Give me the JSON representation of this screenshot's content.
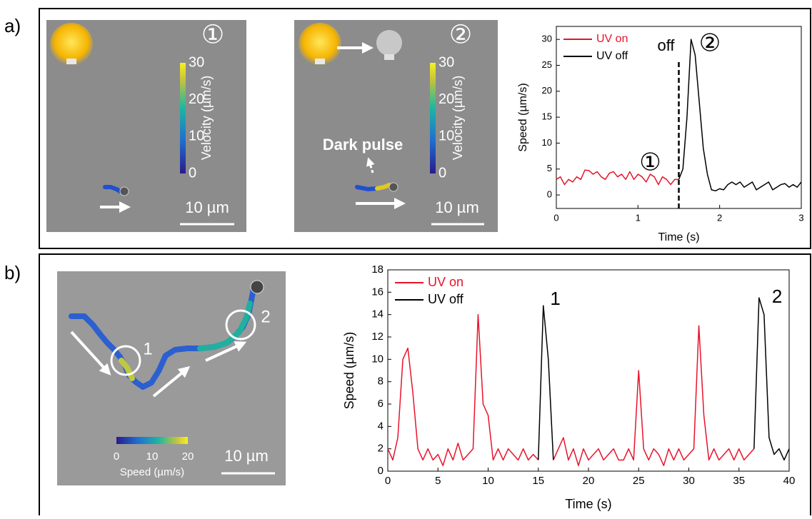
{
  "panel_labels": [
    "a)",
    "b)"
  ],
  "images": [
    {
      "number": "①",
      "colorbar": {
        "label": "Velocity (µm/s)",
        "ticks": [
          0,
          10,
          20,
          30
        ]
      },
      "scale_bar": "10 µm"
    },
    {
      "number": "②",
      "colorbar": {
        "label": "Velocity (µm/s)",
        "ticks": [
          0,
          10,
          20,
          30
        ]
      },
      "annotation": "Dark pulse",
      "scale_bar": "10 µm"
    },
    {
      "markers": [
        "1",
        "2"
      ],
      "colorbar": {
        "label": "Speed (µm/s)",
        "ticks": [
          0,
          10,
          20
        ]
      },
      "scale_bar": "10 µm"
    }
  ],
  "chart_data": [
    {
      "type": "line",
      "xlabel": "Time (s)",
      "ylabel": "Speed (µm/s)",
      "xlim": [
        0,
        3
      ],
      "ylim": [
        -2.6,
        32.5
      ],
      "xticks": [
        0,
        1,
        2,
        3
      ],
      "yticks": [
        0,
        5,
        10,
        15,
        20,
        25,
        30
      ],
      "legend": "upper-left",
      "vline": {
        "x": 1.5,
        "label": "off"
      },
      "annotations": [
        "①",
        "②"
      ],
      "x": [
        0,
        0.05,
        0.1,
        0.15,
        0.2,
        0.25,
        0.3,
        0.35,
        0.4,
        0.45,
        0.5,
        0.55,
        0.6,
        0.65,
        0.7,
        0.75,
        0.8,
        0.85,
        0.9,
        0.95,
        1,
        1.05,
        1.1,
        1.15,
        1.2,
        1.25,
        1.3,
        1.35,
        1.4,
        1.45,
        1.5,
        1.55,
        1.6,
        1.65,
        1.7,
        1.75,
        1.8,
        1.85,
        1.9,
        1.95,
        2,
        2.05,
        2.1,
        2.15,
        2.2,
        2.25,
        2.3,
        2.35,
        2.4,
        2.45,
        2.5,
        2.55,
        2.6,
        2.65,
        2.7,
        2.75,
        2.8,
        2.85,
        2.9,
        2.95,
        3
      ],
      "series": [
        {
          "name": "UV on",
          "color": "#e8132a",
          "values": [
            3,
            3.5,
            2,
            3,
            2.5,
            3.5,
            3,
            4.8,
            4.7,
            4,
            4.5,
            3.5,
            3,
            4.2,
            4.5,
            3.5,
            4,
            3,
            4.5,
            3,
            4,
            3.5,
            2.5,
            4,
            3.5,
            2,
            3.5,
            3,
            2,
            3,
            3,
            null,
            null,
            null,
            null,
            null,
            null,
            null,
            null,
            null,
            null,
            null,
            null,
            null,
            null,
            null,
            null,
            null,
            null,
            null,
            null,
            null,
            null,
            null,
            null,
            null,
            null,
            null,
            null,
            null,
            null
          ]
        },
        {
          "name": "UV off",
          "color": "#000000",
          "values": [
            null,
            null,
            null,
            null,
            null,
            null,
            null,
            null,
            null,
            null,
            null,
            null,
            null,
            null,
            null,
            null,
            null,
            null,
            null,
            null,
            null,
            null,
            null,
            null,
            null,
            null,
            null,
            null,
            null,
            null,
            3,
            5,
            15,
            30,
            27,
            18,
            9,
            4,
            1,
            0.8,
            1.2,
            1,
            2,
            2.5,
            2,
            2.5,
            1.5,
            2,
            2.5,
            1,
            1.5,
            2,
            2.5,
            1,
            1.5,
            2,
            2.2,
            1.5,
            2,
            1.5,
            2.5
          ]
        }
      ]
    },
    {
      "type": "line",
      "xlabel": "Time (s)",
      "ylabel": "Speed (µm/s)",
      "xlim": [
        0,
        40
      ],
      "ylim": [
        0,
        18
      ],
      "xticks": [
        0,
        5,
        10,
        15,
        20,
        25,
        30,
        35,
        40
      ],
      "yticks": [
        0,
        2,
        4,
        6,
        8,
        10,
        12,
        14,
        16,
        18
      ],
      "legend": "upper-left",
      "annotations": [
        "1",
        "2"
      ],
      "x": [
        0,
        0.5,
        1,
        1.5,
        2,
        2.5,
        3,
        3.5,
        4,
        4.5,
        5,
        5.5,
        6,
        6.5,
        7,
        7.5,
        8,
        8.5,
        9,
        9.5,
        10,
        10.5,
        11,
        11.5,
        12,
        12.5,
        13,
        13.5,
        14,
        14.5,
        15,
        15.5,
        16,
        16.5,
        17,
        17.5,
        18,
        18.5,
        19,
        19.5,
        20,
        20.5,
        21,
        21.5,
        22,
        22.5,
        23,
        23.5,
        24,
        24.5,
        25,
        25.5,
        26,
        26.5,
        27,
        27.5,
        28,
        28.5,
        29,
        29.5,
        30,
        30.5,
        31,
        31.5,
        32,
        32.5,
        33,
        33.5,
        34,
        34.5,
        35,
        35.5,
        36,
        36.5,
        37,
        37.5,
        38,
        38.5,
        39,
        39.5,
        40
      ],
      "series": [
        {
          "name": "UV on",
          "color": "#e8132a",
          "values": [
            2,
            1,
            3,
            10,
            11,
            7,
            2,
            1,
            2,
            1,
            1.5,
            0.5,
            2,
            1,
            2.5,
            1,
            1.5,
            2,
            14,
            6,
            5,
            1,
            2,
            1,
            2,
            1.5,
            1,
            2,
            1,
            1.5,
            1,
            null,
            null,
            1,
            2,
            3,
            1,
            2,
            0.5,
            2,
            1,
            1.5,
            2,
            1,
            1.5,
            2,
            1,
            1,
            2,
            1,
            9,
            2,
            1,
            2,
            1.5,
            0.5,
            2,
            1,
            2,
            1,
            1.5,
            2,
            13,
            5,
            1,
            2,
            1,
            1.5,
            2,
            1,
            2,
            1,
            1.5,
            2,
            null,
            null,
            null,
            null,
            null,
            null,
            null
          ]
        },
        {
          "name": "UV off",
          "color": "#000000",
          "values": [
            null,
            null,
            null,
            null,
            null,
            null,
            null,
            null,
            null,
            null,
            null,
            null,
            null,
            null,
            null,
            null,
            null,
            null,
            null,
            null,
            null,
            null,
            null,
            null,
            null,
            null,
            null,
            null,
            null,
            null,
            1,
            14.8,
            10,
            1,
            null,
            null,
            null,
            null,
            null,
            null,
            null,
            null,
            null,
            null,
            null,
            null,
            null,
            null,
            null,
            null,
            null,
            null,
            null,
            null,
            null,
            null,
            null,
            null,
            null,
            null,
            null,
            null,
            null,
            null,
            null,
            null,
            null,
            null,
            null,
            null,
            null,
            null,
            null,
            2,
            15.5,
            14,
            3,
            1.5,
            2,
            1,
            2
          ]
        }
      ]
    }
  ]
}
